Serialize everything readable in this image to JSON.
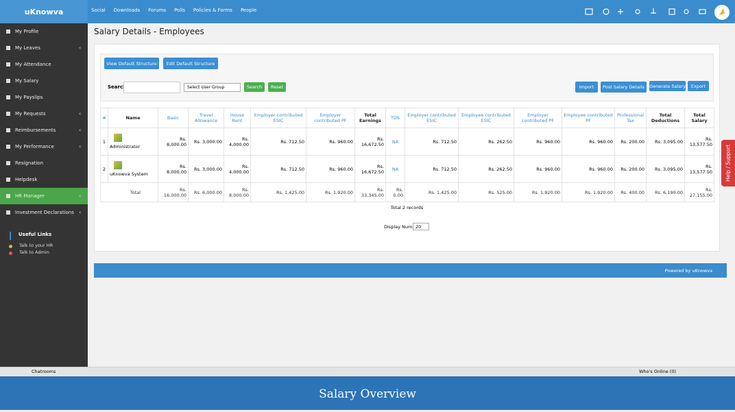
{
  "logo": "uKnowva",
  "nav": [
    "Social",
    "Downloads",
    "Forums",
    "Polls",
    "Policies & Forms",
    "People"
  ],
  "sidebar": [
    {
      "label": "My Profile"
    },
    {
      "label": "My Leaves",
      "has_submenu": true
    },
    {
      "label": "My Attendance"
    },
    {
      "label": "My Salary"
    },
    {
      "label": "My Payslips"
    },
    {
      "label": "My Requests",
      "has_submenu": true
    },
    {
      "label": "Reimbursements",
      "has_submenu": true
    },
    {
      "label": "My Performance",
      "has_submenu": true
    },
    {
      "label": "Resignation"
    },
    {
      "label": "Helpdesk"
    },
    {
      "label": "HR Manager",
      "has_submenu": true,
      "active": true
    },
    {
      "label": "Investment Declarations",
      "has_submenu": true
    }
  ],
  "useful_links": {
    "title": "Useful Links",
    "items": [
      {
        "label": "Talk to your HR",
        "color": "#e8b43a"
      },
      {
        "label": "Talk to Admin",
        "color": "#e05a5a"
      }
    ]
  },
  "page_title": "Salary Details - Employees",
  "buttons": {
    "top": [
      "View Default Structure",
      "Edit Default Structure"
    ],
    "search_label": "Search",
    "select": "Select User Group",
    "search": "Search",
    "reset": "Reset",
    "right": [
      "Import",
      "Post Salary Details",
      "Generate Salary",
      "Export"
    ]
  },
  "table": {
    "headers": [
      "#",
      "Name",
      "Basic",
      "Travel Allowance",
      "House Rent",
      "Employer contributed ESIC",
      "Employer contributed PF",
      "Total Earnings",
      "TDS",
      "Employer contributed ESIC",
      "Employee contributed ESIC",
      "Employer contributed PF",
      "Employee contributed PF",
      "Professional Tax",
      "Total Deductions",
      "Total Salary"
    ],
    "rows": [
      [
        "1",
        "Administrator",
        "Rs. 8,000.00",
        "Rs. 3,000.00",
        "Rs. 4,000.00",
        "Rs. 712.50",
        "Rs. 960.00",
        "Rs. 16,672.50",
        "NA",
        "Rs. 712.50",
        "Rs. 262.50",
        "Rs. 960.00",
        "Rs. 960.00",
        "Rs. 200.00",
        "Rs. 3,095.00",
        "Rs. 13,577.50"
      ],
      [
        "2",
        "uKnowva System",
        "Rs. 8,000.00",
        "Rs. 3,000.00",
        "Rs. 4,000.00",
        "Rs. 712.50",
        "Rs. 960.00",
        "Rs. 16,672.50",
        "NA",
        "Rs. 712.50",
        "Rs. 262.50",
        "Rs. 960.00",
        "Rs. 960.00",
        "Rs. 200.00",
        "Rs. 3,095.00",
        "Rs. 13,577.50"
      ]
    ],
    "total": {
      "label": "Total",
      "cells": [
        "Rs. 16,000.00",
        "Rs. 6,000.00",
        "Rs. 8,000.00",
        "Rs. 1,425.00",
        "Rs. 1,920.00",
        "Rs. 33,345.00",
        "Rs. 0.00",
        "Rs. 1,425.00",
        "Rs. 525.00",
        "Rs. 1,920.00",
        "Rs. 1,920.00",
        "Rs. 400.00",
        "Rs. 6,190.00",
        "Rs. 27,155.00"
      ]
    }
  },
  "records": "Total 2 records",
  "display_num": {
    "label": "Display Num",
    "value": "20"
  },
  "footer": "Powered by uKnowva",
  "help": "Help / Support",
  "chat": {
    "chatrooms": "Chatrooms",
    "online": "Who's Online (0)"
  },
  "caption": "Salary Overview"
}
